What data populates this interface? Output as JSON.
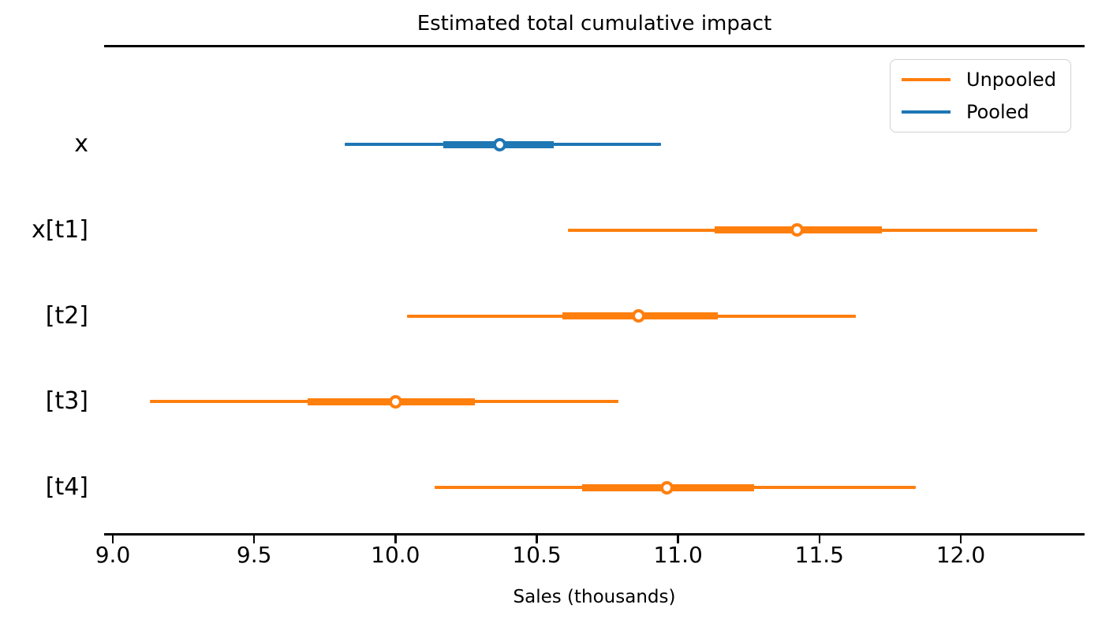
{
  "figure": {
    "title": "Estimated total cumulative impact",
    "xlabel": "Sales (thousands)"
  },
  "colors": {
    "unpooled": "#ff7f0e",
    "pooled": "#1f77b4",
    "axis": "#000000",
    "marker_face": "#ffffff",
    "legend_border": "#d2d2d2"
  },
  "legend": {
    "position": "upper right",
    "items": [
      {
        "label": "Unpooled",
        "color_key": "unpooled"
      },
      {
        "label": "Pooled",
        "color_key": "pooled"
      }
    ]
  },
  "chart_data": {
    "type": "forest",
    "title": "Estimated total cumulative impact",
    "xlabel": "Sales (thousands)",
    "ylabel": "",
    "grid": false,
    "legend_position": "upper right",
    "x_ticks": [
      9.0,
      9.5,
      10.0,
      10.5,
      11.0,
      11.5,
      12.0
    ],
    "x_tick_labels": [
      "9.0",
      "9.5",
      "10.0",
      "10.5",
      "11.0",
      "11.5",
      "12.0"
    ],
    "xlim": [
      8.97,
      12.44
    ],
    "rows": [
      {
        "label": "x",
        "series": "Pooled",
        "median": 10.37,
        "hdi_50": [
          10.17,
          10.56
        ],
        "hdi_94": [
          9.82,
          10.94
        ]
      },
      {
        "label": "x[t1]",
        "series": "Unpooled",
        "median": 11.42,
        "hdi_50": [
          11.13,
          11.72
        ],
        "hdi_94": [
          10.61,
          12.27
        ]
      },
      {
        "label": "[t2]",
        "series": "Unpooled",
        "median": 10.86,
        "hdi_50": [
          10.59,
          11.14
        ],
        "hdi_94": [
          10.04,
          11.63
        ]
      },
      {
        "label": "[t3]",
        "series": "Unpooled",
        "median": 10.0,
        "hdi_50": [
          9.69,
          10.28
        ],
        "hdi_94": [
          9.13,
          10.79
        ]
      },
      {
        "label": "[t4]",
        "series": "Unpooled",
        "median": 10.96,
        "hdi_50": [
          10.66,
          11.27
        ],
        "hdi_94": [
          10.14,
          11.84
        ]
      }
    ]
  }
}
